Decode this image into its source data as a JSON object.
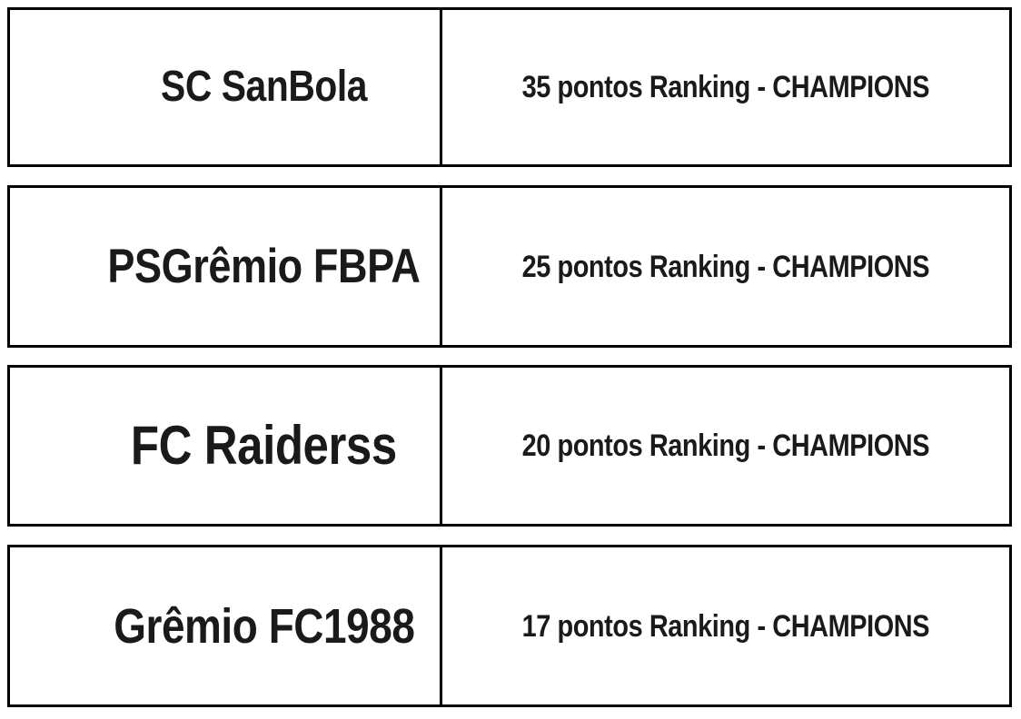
{
  "colors": {
    "border": "#000000",
    "text": "#1a1a1a",
    "background": "#ffffff"
  },
  "ranking_table": {
    "rows": [
      {
        "team": "SC SanBola",
        "points": 35,
        "points_text": "35 pontos Ranking - CHAMPIONS"
      },
      {
        "team": "PSGrêmio FBPA",
        "points": 25,
        "points_text": "25 pontos Ranking - CHAMPIONS"
      },
      {
        "team": "FC Raiderss",
        "points": 20,
        "points_text": "20 pontos Ranking - CHAMPIONS"
      },
      {
        "team": "Grêmio FC1988",
        "points": 17,
        "points_text": "17 pontos Ranking - CHAMPIONS"
      }
    ]
  }
}
